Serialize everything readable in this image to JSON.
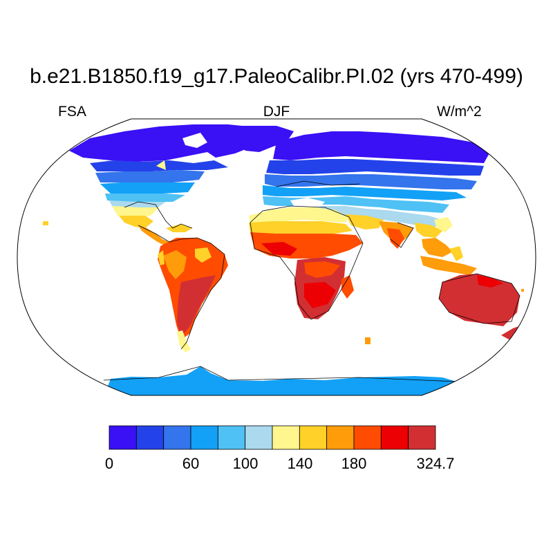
{
  "figure": {
    "title": "b.e21.B1850.f19_g17.PaleoCalibr.PI.02 (yrs 470-499)",
    "left_label": "FSA",
    "center_label": "DJF",
    "right_label": "W/m^2"
  },
  "colorbar": {
    "colors": [
      "#3a10f5",
      "#2442ea",
      "#3474ec",
      "#12a1f6",
      "#4fc1f4",
      "#abd9ee",
      "#fff68d",
      "#ffd129",
      "#ff9c0a",
      "#ff4c00",
      "#ec0003",
      "#d22f33"
    ],
    "tick_labels": [
      "0",
      "60",
      "100",
      "140",
      "180",
      "324.7"
    ]
  }
}
